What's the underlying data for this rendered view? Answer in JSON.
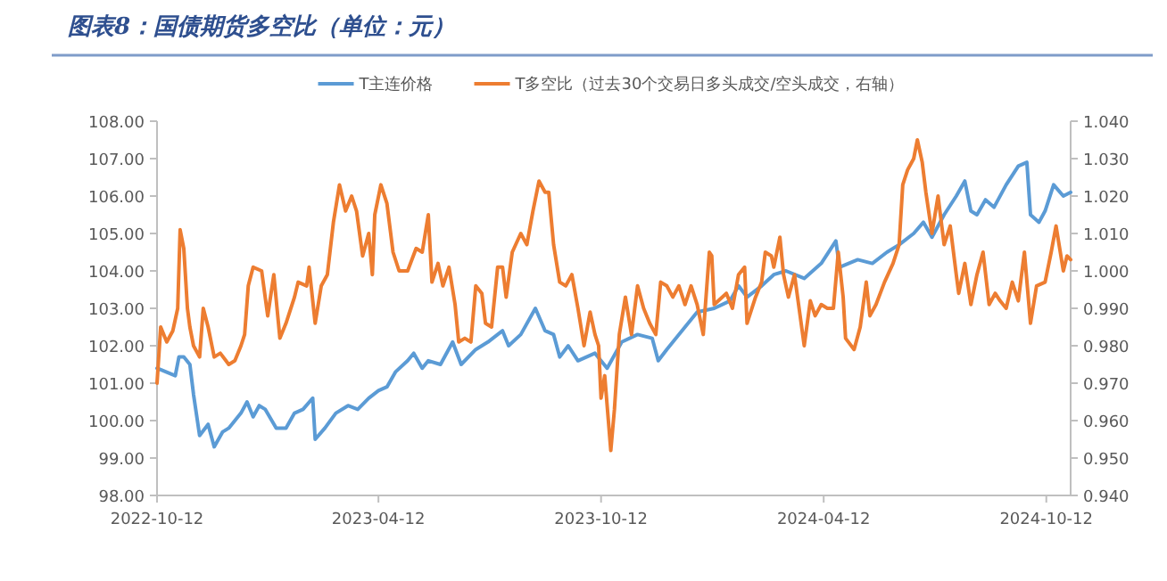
{
  "chart_data": {
    "type": "line",
    "title": "图表8：国债期货多空比（单位：元）",
    "legend": "top",
    "xlim": [
      "2022-10-12",
      "2024-11-01"
    ],
    "xticks": [
      "2022-10-12",
      "2023-04-12",
      "2023-10-12",
      "2024-04-12",
      "2024-10-12"
    ],
    "ylim": [
      98,
      108
    ],
    "yticks": [
      {
        "value": 98,
        "label": "98.00"
      },
      {
        "value": 99,
        "label": "99.00"
      },
      {
        "value": 100,
        "label": "100.00"
      },
      {
        "value": 101,
        "label": "101.00"
      },
      {
        "value": 102,
        "label": "102.00"
      },
      {
        "value": 103,
        "label": "103.00"
      },
      {
        "value": 104,
        "label": "104.00"
      },
      {
        "value": 105,
        "label": "105.00"
      },
      {
        "value": 106,
        "label": "106.00"
      },
      {
        "value": 107,
        "label": "107.00"
      },
      {
        "value": 108,
        "label": "108.00"
      }
    ],
    "y2lim": [
      0.94,
      1.04
    ],
    "y2ticks": [
      {
        "value": 0.94,
        "label": "0.940"
      },
      {
        "value": 0.95,
        "label": "0.950"
      },
      {
        "value": 0.96,
        "label": "0.960"
      },
      {
        "value": 0.97,
        "label": "0.970"
      },
      {
        "value": 0.98,
        "label": "0.980"
      },
      {
        "value": 0.99,
        "label": "0.990"
      },
      {
        "value": 1.0,
        "label": "1.000"
      },
      {
        "value": 1.01,
        "label": "1.010"
      },
      {
        "value": 1.02,
        "label": "1.020"
      },
      {
        "value": 1.03,
        "label": "1.030"
      },
      {
        "value": 1.04,
        "label": "1.040"
      }
    ],
    "series": [
      {
        "name": "T主连价格",
        "color": "#5b9bd5",
        "x": [
          "2022-10-12",
          "2022-10-27",
          "2022-10-30",
          "2022-11-03",
          "2022-11-08",
          "2022-11-11",
          "2022-11-16",
          "2022-11-23",
          "2022-11-28",
          "2022-12-05",
          "2022-12-10",
          "2022-12-15",
          "2022-12-20",
          "2022-12-25",
          "2022-12-30",
          "2023-01-04",
          "2023-01-09",
          "2023-01-18",
          "2023-01-26",
          "2023-02-02",
          "2023-02-09",
          "2023-02-17",
          "2023-02-19",
          "2023-02-27",
          "2023-03-08",
          "2023-03-18",
          "2023-03-26",
          "2023-04-04",
          "2023-04-12",
          "2023-04-19",
          "2023-04-26",
          "2023-05-06",
          "2023-05-11",
          "2023-05-18",
          "2023-05-23",
          "2023-06-02",
          "2023-06-12",
          "2023-06-19",
          "2023-07-01",
          "2023-07-11",
          "2023-07-23",
          "2023-07-28",
          "2023-08-07",
          "2023-08-19",
          "2023-08-27",
          "2023-09-03",
          "2023-09-08",
          "2023-09-15",
          "2023-09-23",
          "2023-10-07",
          "2023-10-17",
          "2023-10-29",
          "2023-11-11",
          "2023-11-23",
          "2023-11-28",
          "2023-12-05",
          "2023-12-20",
          "2023-12-30",
          "2024-01-13",
          "2024-01-26",
          "2024-02-02",
          "2024-02-09",
          "2024-02-21",
          "2024-03-02",
          "2024-03-12",
          "2024-03-27",
          "2024-04-10",
          "2024-04-22",
          "2024-04-25",
          "2024-05-10",
          "2024-05-22",
          "2024-06-03",
          "2024-06-13",
          "2024-06-25",
          "2024-07-03",
          "2024-07-10",
          "2024-07-20",
          "2024-07-30",
          "2024-08-06",
          "2024-08-11",
          "2024-08-16",
          "2024-08-23",
          "2024-08-30",
          "2024-09-09",
          "2024-09-19",
          "2024-09-26",
          "2024-09-29",
          "2024-10-06",
          "2024-10-11",
          "2024-10-18",
          "2024-10-26",
          "2024-11-01"
        ],
        "values": [
          101.4,
          101.2,
          101.7,
          101.7,
          101.5,
          100.7,
          99.6,
          99.9,
          99.3,
          99.7,
          99.8,
          100.0,
          100.2,
          100.5,
          100.1,
          100.4,
          100.3,
          99.8,
          99.8,
          100.2,
          100.3,
          100.6,
          99.5,
          99.8,
          100.2,
          100.4,
          100.3,
          100.6,
          100.8,
          100.9,
          101.3,
          101.6,
          101.8,
          101.4,
          101.6,
          101.5,
          102.1,
          101.5,
          101.9,
          102.1,
          102.4,
          102.0,
          102.3,
          103.0,
          102.4,
          102.3,
          101.7,
          102.0,
          101.6,
          101.8,
          101.4,
          102.1,
          102.3,
          102.2,
          101.6,
          101.9,
          102.5,
          102.9,
          103.0,
          103.2,
          103.6,
          103.3,
          103.6,
          103.9,
          104.0,
          103.8,
          104.2,
          104.8,
          104.1,
          104.3,
          104.2,
          104.5,
          104.7,
          105.0,
          105.3,
          104.9,
          105.5,
          106.0,
          106.4,
          105.6,
          105.5,
          105.9,
          105.7,
          106.3,
          106.8,
          106.9,
          105.5,
          105.3,
          105.6,
          106.3,
          106.0,
          106.1
        ]
      },
      {
        "name": "T多空比（过去30个交易日多头成交/空头成交，右轴）",
        "color": "#ed7d31",
        "axis": "y2",
        "x": [
          "2022-10-12",
          "2022-10-15",
          "2022-10-20",
          "2022-10-25",
          "2022-10-29",
          "2022-10-31",
          "2022-11-03",
          "2022-11-06",
          "2022-11-08",
          "2022-11-11",
          "2022-11-16",
          "2022-11-19",
          "2022-11-23",
          "2022-11-28",
          "2022-12-03",
          "2022-12-10",
          "2022-12-15",
          "2022-12-20",
          "2022-12-23",
          "2022-12-26",
          "2022-12-30",
          "2023-01-06",
          "2023-01-11",
          "2023-01-16",
          "2023-01-21",
          "2023-01-26",
          "2023-02-02",
          "2023-02-05",
          "2023-02-12",
          "2023-02-14",
          "2023-02-19",
          "2023-02-24",
          "2023-03-01",
          "2023-03-06",
          "2023-03-11",
          "2023-03-16",
          "2023-03-21",
          "2023-03-25",
          "2023-03-30",
          "2023-04-04",
          "2023-04-07",
          "2023-04-09",
          "2023-04-14",
          "2023-04-19",
          "2023-04-24",
          "2023-04-29",
          "2023-05-06",
          "2023-05-13",
          "2023-05-18",
          "2023-05-23",
          "2023-05-26",
          "2023-05-31",
          "2023-06-04",
          "2023-06-09",
          "2023-06-14",
          "2023-06-17",
          "2023-06-22",
          "2023-06-27",
          "2023-07-01",
          "2023-07-06",
          "2023-07-09",
          "2023-07-14",
          "2023-07-19",
          "2023-07-23",
          "2023-07-26",
          "2023-07-31",
          "2023-08-07",
          "2023-08-12",
          "2023-08-17",
          "2023-08-22",
          "2023-08-27",
          "2023-08-30",
          "2023-09-03",
          "2023-09-08",
          "2023-09-13",
          "2023-09-18",
          "2023-09-23",
          "2023-09-28",
          "2023-10-03",
          "2023-10-07",
          "2023-10-10",
          "2023-10-12",
          "2023-10-15",
          "2023-10-20",
          "2023-10-23",
          "2023-10-27",
          "2023-11-01",
          "2023-11-06",
          "2023-11-11",
          "2023-11-16",
          "2023-11-21",
          "2023-11-26",
          "2023-11-30",
          "2023-12-05",
          "2023-12-10",
          "2023-12-15",
          "2023-12-20",
          "2023-12-25",
          "2023-12-30",
          "2024-01-04",
          "2024-01-09",
          "2024-01-11",
          "2024-01-13",
          "2024-01-23",
          "2024-01-28",
          "2024-02-02",
          "2024-02-07",
          "2024-02-09",
          "2024-02-16",
          "2024-02-21",
          "2024-02-24",
          "2024-02-29",
          "2024-03-02",
          "2024-03-07",
          "2024-03-10",
          "2024-03-14",
          "2024-03-19",
          "2024-03-27",
          "2024-04-01",
          "2024-04-05",
          "2024-04-10",
          "2024-04-15",
          "2024-04-20",
          "2024-04-24",
          "2024-04-28",
          "2024-04-30",
          "2024-05-07",
          "2024-05-12",
          "2024-05-17",
          "2024-05-20",
          "2024-05-25",
          "2024-06-01",
          "2024-06-08",
          "2024-06-13",
          "2024-06-16",
          "2024-06-20",
          "2024-06-25",
          "2024-06-28",
          "2024-07-02",
          "2024-07-05",
          "2024-07-10",
          "2024-07-15",
          "2024-07-20",
          "2024-07-25",
          "2024-07-30",
          "2024-08-01",
          "2024-08-06",
          "2024-08-11",
          "2024-08-16",
          "2024-08-21",
          "2024-08-26",
          "2024-08-31",
          "2024-09-04",
          "2024-09-09",
          "2024-09-14",
          "2024-09-19",
          "2024-09-24",
          "2024-09-29",
          "2024-10-04",
          "2024-10-11",
          "2024-10-16",
          "2024-10-20",
          "2024-10-22",
          "2024-10-26",
          "2024-10-29",
          "2024-11-01"
        ],
        "values": [
          0.97,
          0.985,
          0.981,
          0.984,
          0.99,
          1.011,
          1.006,
          0.99,
          0.985,
          0.98,
          0.977,
          0.99,
          0.985,
          0.977,
          0.978,
          0.975,
          0.976,
          0.98,
          0.983,
          0.996,
          1.001,
          1.0,
          0.988,
          0.999,
          0.982,
          0.986,
          0.993,
          0.997,
          0.996,
          1.001,
          0.986,
          0.996,
          0.999,
          1.013,
          1.023,
          1.016,
          1.02,
          1.016,
          1.004,
          1.01,
          0.999,
          1.015,
          1.023,
          1.018,
          1.005,
          1.0,
          1.0,
          1.006,
          1.005,
          1.015,
          0.997,
          1.002,
          0.996,
          1.001,
          0.991,
          0.981,
          0.982,
          0.981,
          0.996,
          0.994,
          0.986,
          0.985,
          1.001,
          1.001,
          0.993,
          1.005,
          1.01,
          1.007,
          1.016,
          1.024,
          1.021,
          1.021,
          1.007,
          0.997,
          0.996,
          0.999,
          0.99,
          0.98,
          0.989,
          0.983,
          0.98,
          0.966,
          0.972,
          0.952,
          0.963,
          0.983,
          0.993,
          0.983,
          0.996,
          0.99,
          0.986,
          0.983,
          0.997,
          0.996,
          0.993,
          0.996,
          0.991,
          0.996,
          0.991,
          0.983,
          1.005,
          1.004,
          0.991,
          0.994,
          0.99,
          0.999,
          1.001,
          0.986,
          0.993,
          0.997,
          1.005,
          1.004,
          1.001,
          1.009,
          0.999,
          0.993,
          0.999,
          0.98,
          0.992,
          0.988,
          0.991,
          0.99,
          0.99,
          1.005,
          0.993,
          0.982,
          0.979,
          0.985,
          0.997,
          0.988,
          0.991,
          0.997,
          1.002,
          1.007,
          1.023,
          1.027,
          1.03,
          1.035,
          1.029,
          1.021,
          1.01,
          1.02,
          1.007,
          1.012,
          0.999,
          0.994,
          1.002,
          0.991,
          0.999,
          1.005,
          0.991,
          0.994,
          0.992,
          0.99,
          0.997,
          0.992,
          1.005,
          0.986,
          0.996,
          0.997,
          1.005,
          1.012,
          1.008,
          1.0,
          1.004,
          1.003
        ]
      }
    ]
  }
}
